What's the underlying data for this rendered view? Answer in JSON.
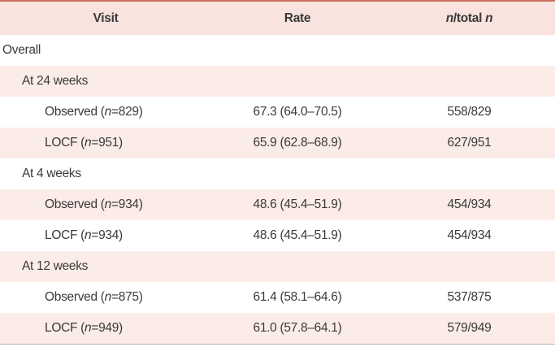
{
  "header": [
    [
      "Visit"
    ],
    [
      "Rate"
    ],
    [
      "n",
      "/total ",
      "n"
    ]
  ],
  "rows": [
    {
      "level": 0,
      "label": [
        "Overall"
      ]
    },
    {
      "level": 1,
      "label": [
        "At 24 weeks"
      ]
    },
    {
      "level": 2,
      "label": [
        "Observed (",
        "n",
        "=829)"
      ],
      "rate": "67.3 (64.0–70.5)",
      "count": "558/829"
    },
    {
      "level": 2,
      "label": [
        "LOCF (",
        "n",
        "=951)"
      ],
      "rate": "65.9 (62.8–68.9)",
      "count": "627/951"
    },
    {
      "level": 1,
      "label": [
        "At 4 weeks"
      ]
    },
    {
      "level": 2,
      "label": [
        "Observed (",
        "n",
        "=934)"
      ],
      "rate": "48.6 (45.4–51.9)",
      "count": "454/934"
    },
    {
      "level": 2,
      "label": [
        "LOCF (",
        "n",
        "=934)"
      ],
      "rate": "48.6 (45.4–51.9)",
      "count": "454/934"
    },
    {
      "level": 1,
      "label": [
        "At 12 weeks"
      ]
    },
    {
      "level": 2,
      "label": [
        "Observed (",
        "n",
        "=875)"
      ],
      "rate": "61.4 (58.1–64.6)",
      "count": "537/875"
    },
    {
      "level": 2,
      "label": [
        "LOCF (",
        "n",
        "=949)"
      ],
      "rate": "61.0 (57.8–64.1)",
      "count": "579/949"
    }
  ]
}
